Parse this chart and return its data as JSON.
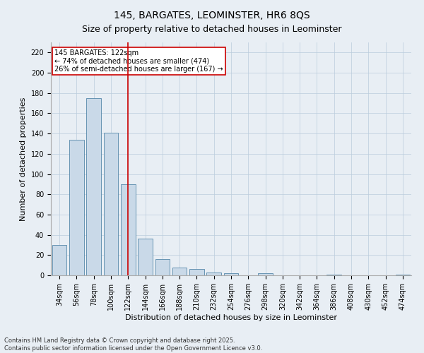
{
  "title": "145, BARGATES, LEOMINSTER, HR6 8QS",
  "subtitle": "Size of property relative to detached houses in Leominster",
  "xlabel": "Distribution of detached houses by size in Leominster",
  "ylabel": "Number of detached properties",
  "categories": [
    "34sqm",
    "56sqm",
    "78sqm",
    "100sqm",
    "122sqm",
    "144sqm",
    "166sqm",
    "188sqm",
    "210sqm",
    "232sqm",
    "254sqm",
    "276sqm",
    "298sqm",
    "320sqm",
    "342sqm",
    "364sqm",
    "386sqm",
    "408sqm",
    "430sqm",
    "452sqm",
    "474sqm"
  ],
  "values": [
    30,
    134,
    175,
    141,
    90,
    36,
    16,
    8,
    6,
    3,
    2,
    0,
    2,
    0,
    0,
    0,
    1,
    0,
    0,
    0,
    1
  ],
  "bar_color": "#c9d9e8",
  "bar_edge_color": "#5588aa",
  "vline_index": 4,
  "vline_color": "#cc0000",
  "annotation_text": "145 BARGATES: 122sqm\n← 74% of detached houses are smaller (474)\n26% of semi-detached houses are larger (167) →",
  "annotation_box_color": "#ffffff",
  "annotation_box_edge": "#cc0000",
  "ylim": [
    0,
    230
  ],
  "yticks": [
    0,
    20,
    40,
    60,
    80,
    100,
    120,
    140,
    160,
    180,
    200,
    220
  ],
  "grid_color": "#bbccdd",
  "bg_color": "#e8eef4",
  "plot_bg_color": "#e8eef4",
  "footer": "Contains HM Land Registry data © Crown copyright and database right 2025.\nContains public sector information licensed under the Open Government Licence v3.0.",
  "title_fontsize": 10,
  "subtitle_fontsize": 9,
  "xlabel_fontsize": 8,
  "ylabel_fontsize": 8,
  "tick_fontsize": 7,
  "annotation_fontsize": 7,
  "footer_fontsize": 6
}
